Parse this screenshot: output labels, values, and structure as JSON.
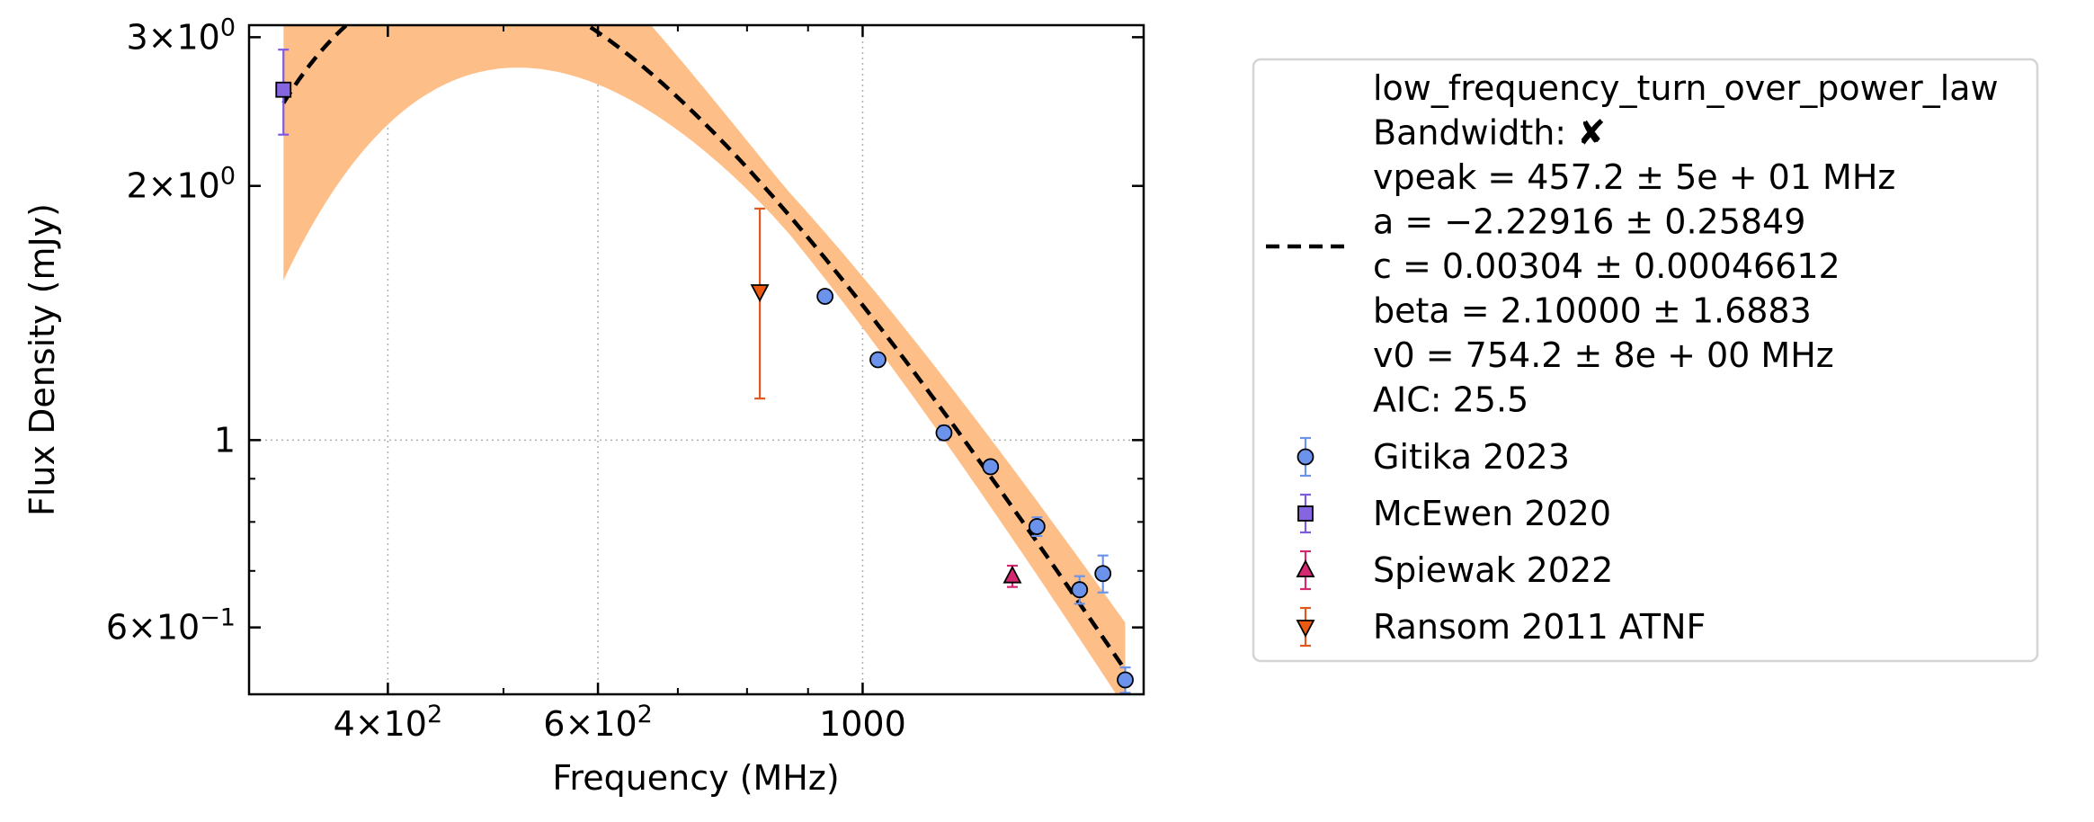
{
  "chart_data": {
    "type": "scatter",
    "xlabel": "Frequency (MHz)",
    "ylabel": "Flux Density (mJy)",
    "xscale": "log",
    "yscale": "log",
    "xlim": [
      306,
      1720
    ],
    "ylim": [
      0.5,
      3.1
    ],
    "grid": "dotted, major ticks only",
    "legend_position": "outside right",
    "x_tick_labels": [
      {
        "value": 400,
        "base": "4",
        "exp": "2"
      },
      {
        "value": 600,
        "base": "6",
        "exp": "2"
      },
      {
        "value": 1000,
        "text": "1000"
      }
    ],
    "y_tick_labels": [
      {
        "value": 3,
        "base": "3",
        "exp": "0"
      },
      {
        "value": 2,
        "base": "2",
        "exp": "0"
      },
      {
        "value": 1,
        "text": "1"
      },
      {
        "value": 0.6,
        "base": "6",
        "exp": "−1"
      }
    ],
    "x_minor_ticks": [
      300,
      500,
      700,
      800,
      900,
      2000
    ],
    "y_minor_ticks": [
      0.5,
      0.7,
      0.8,
      0.9,
      4
    ],
    "fit": {
      "model_label": "low_frequency_turn_over_power_law",
      "legend_lines": [
        "low_frequency_turn_over_power_law",
        "Bandwidth: ✘",
        "vpeak = 457.2 ± 5e + 01 MHz",
        "a = −2.22916 ± 0.25849",
        "c = 0.00304 ± 0.00046612",
        "beta = 2.10000 ± 1.6883",
        "v0 = 754.2 ± 8e + 00 MHz",
        "AIC: 25.5"
      ],
      "vpeak": 457.2,
      "a": -2.22916,
      "c": 0.00304,
      "beta": 2.1,
      "v0": 754.2,
      "x_range": [
        327,
        1660
      ],
      "line_color": "#000000",
      "band_color": "#fdbf87",
      "band_half_width_log10_at_x0": 0.21,
      "band_half_width_log10_min": 0.022,
      "band_half_width_log10_at_x1": 0.045
    },
    "series": [
      {
        "name": "Gitika 2023",
        "marker": "circle",
        "color": "#6b93ec",
        "errcolor": "#6b93ec",
        "points": [
          {
            "x": 930,
            "y": 1.48,
            "err": 0.02
          },
          {
            "x": 1030,
            "y": 1.245,
            "err": 0.018
          },
          {
            "x": 1170,
            "y": 1.02,
            "err": 0.02
          },
          {
            "x": 1280,
            "y": 0.93,
            "err": 0.015
          },
          {
            "x": 1400,
            "y": 0.79,
            "err": 0.02
          },
          {
            "x": 1520,
            "y": 0.665,
            "err": 0.025
          },
          {
            "x": 1590,
            "y": 0.695,
            "err": 0.035
          },
          {
            "x": 1660,
            "y": 0.52,
            "err": 0.018
          }
        ]
      },
      {
        "name": "McEwen 2020",
        "marker": "square",
        "color": "#8566e0",
        "errcolor": "#7d5ae0",
        "points": [
          {
            "x": 327,
            "y": 2.6,
            "err": 0.3
          }
        ]
      },
      {
        "name": "Spiewak 2022",
        "marker": "triangle-up",
        "color": "#d62870",
        "errcolor": "#d62870",
        "points": [
          {
            "x": 1335,
            "y": 0.69,
            "err": 0.02
          }
        ]
      },
      {
        "name": "Ransom 2011 ATNF",
        "marker": "triangle-down",
        "color": "#ec5a12",
        "errcolor": "#e0581e",
        "points": [
          {
            "x": 820,
            "y": 1.5,
            "err": 0.38
          }
        ]
      }
    ]
  }
}
